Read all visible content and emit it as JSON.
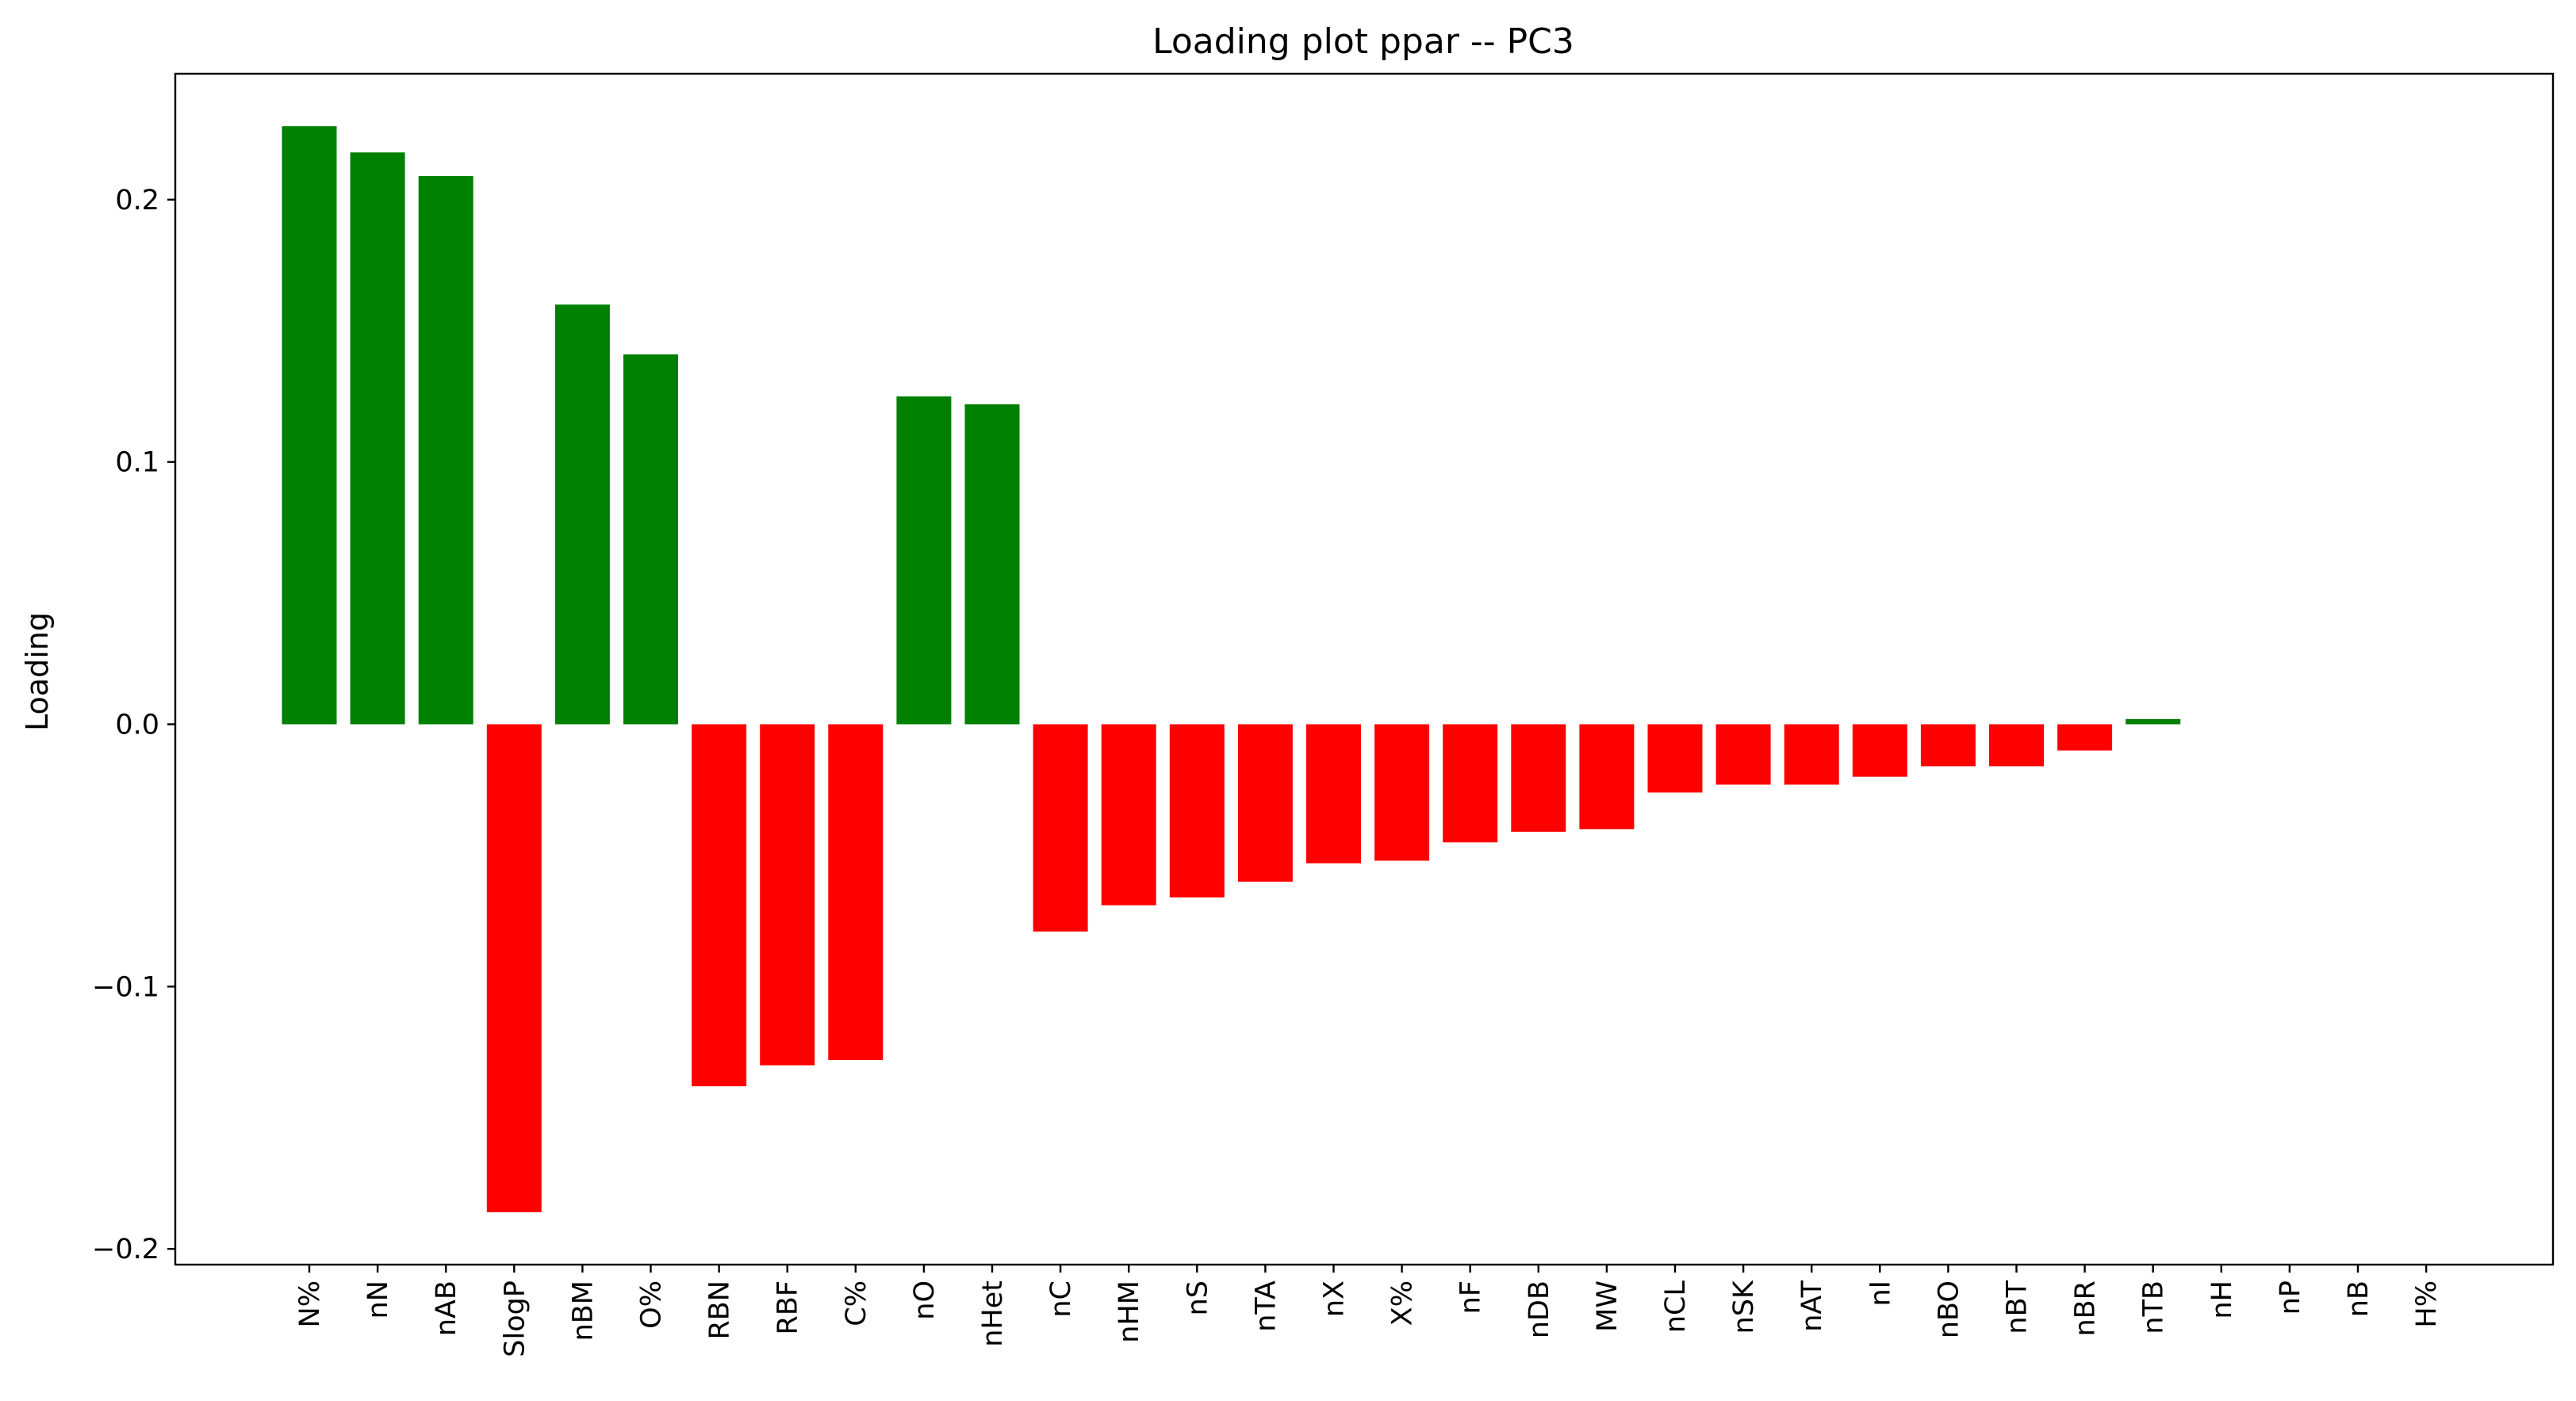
{
  "chart_data": {
    "type": "bar",
    "title": "Loading plot ppar -- PC3",
    "xlabel": "",
    "ylabel": "Loading",
    "ylim": [
      -0.206,
      0.248
    ],
    "yticks": [
      -0.2,
      -0.1,
      0.0,
      0.1,
      0.2
    ],
    "ytick_labels": [
      "−0.2",
      "−0.1",
      "0.0",
      "0.1",
      "0.2"
    ],
    "grid": false,
    "legend": "none",
    "colors": {
      "positive": "#008000",
      "negative": "#ff0000",
      "axis": "#000000"
    },
    "categories": [
      "N%",
      "nN",
      "nAB",
      "SlogP",
      "nBM",
      "O%",
      "RBN",
      "RBF",
      "C%",
      "nO",
      "nHet",
      "nC",
      "nHM",
      "nS",
      "nTA",
      "nX",
      "X%",
      "nF",
      "nDB",
      "MW",
      "nCL",
      "nSK",
      "nAT",
      "nI",
      "nBO",
      "nBT",
      "nBR",
      "nTB",
      "nH",
      "nP",
      "nB",
      "H%"
    ],
    "values": [
      0.228,
      0.218,
      0.209,
      -0.186,
      0.16,
      0.141,
      -0.138,
      -0.13,
      -0.128,
      0.125,
      0.122,
      -0.079,
      -0.069,
      -0.066,
      -0.06,
      -0.053,
      -0.052,
      -0.045,
      -0.041,
      -0.04,
      -0.026,
      -0.023,
      -0.023,
      -0.02,
      -0.016,
      -0.016,
      -0.01,
      0.002,
      0.0,
      0.0,
      0.0,
      0.0
    ]
  }
}
